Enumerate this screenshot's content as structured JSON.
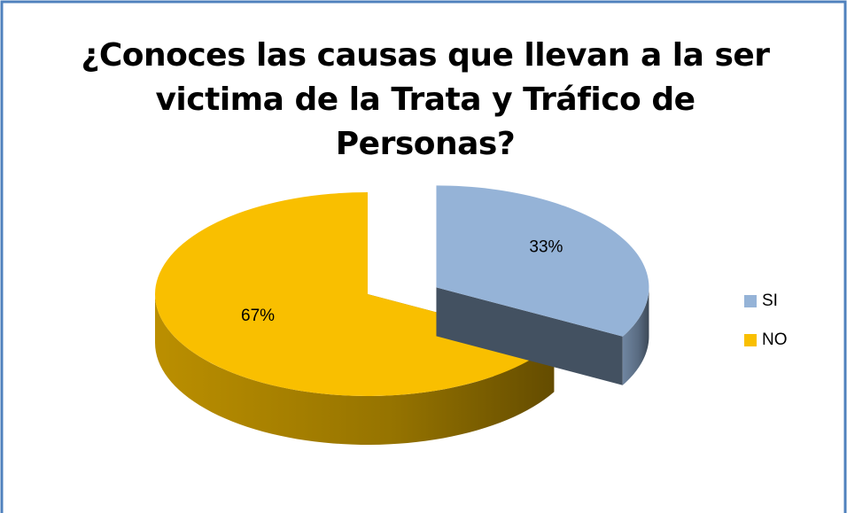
{
  "chart_data": {
    "type": "pie",
    "title": "¿Conoces las causas que llevan a la ser victima de la Trata y Tráfico de Personas?",
    "categories": [
      "SI",
      "NO"
    ],
    "series": [
      {
        "values": [
          33,
          67
        ],
        "value_labels": [
          "33%",
          "67%"
        ],
        "colors": [
          "#95b3d7",
          "#f9bf00"
        ]
      }
    ],
    "legend": "right"
  }
}
